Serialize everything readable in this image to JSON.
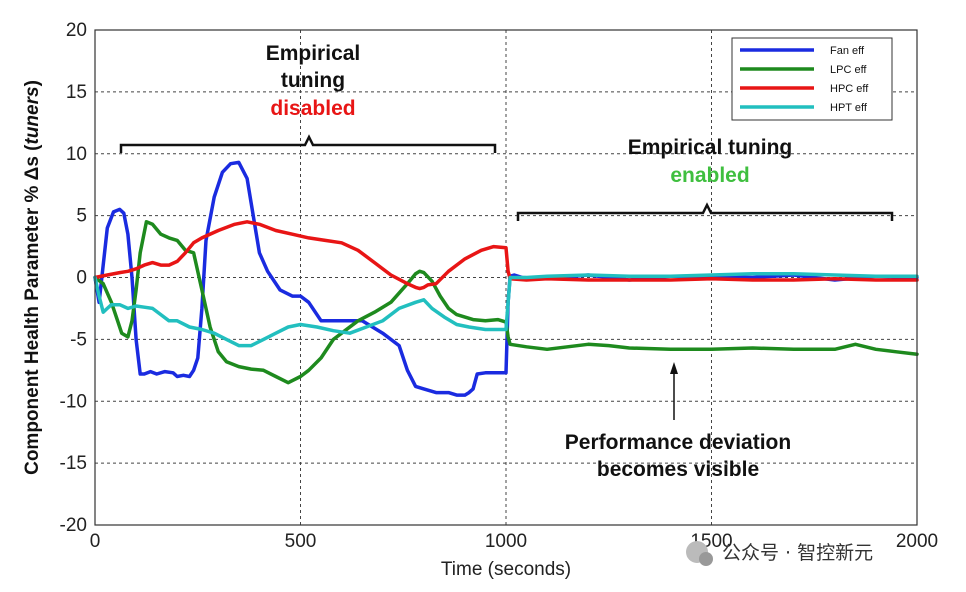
{
  "chart_data": {
    "type": "line",
    "xlabel": "Time (seconds)",
    "ylabel_prefix": "Component Health Parameter % Δs (",
    "ylabel_italic": "tuners",
    "ylabel_suffix": ")",
    "xlim": [
      0,
      2000
    ],
    "ylim": [
      -20,
      20
    ],
    "xticks": [
      0,
      500,
      1000,
      1500,
      2000
    ],
    "yticks": [
      -20,
      -15,
      -10,
      -5,
      0,
      5,
      10,
      15,
      20
    ],
    "grid": "dashed",
    "legend_position": "top-right",
    "series": [
      {
        "name": "Fan eff",
        "color": "#1a2be0",
        "x": [
          0,
          10,
          20,
          30,
          45,
          60,
          70,
          80,
          90,
          100,
          110,
          120,
          135,
          150,
          170,
          190,
          200,
          215,
          230,
          240,
          250,
          260,
          270,
          290,
          310,
          330,
          350,
          370,
          380,
          400,
          420,
          450,
          480,
          500,
          520,
          550,
          580,
          600,
          650,
          700,
          740,
          760,
          780,
          800,
          830,
          860,
          880,
          900,
          910,
          920,
          930,
          950,
          980,
          1000,
          1005,
          1010,
          1020,
          1040,
          1100,
          1200,
          1300,
          1400,
          1500,
          1600,
          1700,
          1800,
          1900,
          2000
        ],
        "y": [
          0,
          -2,
          1,
          4,
          5.3,
          5.5,
          5.2,
          3.5,
          0,
          -5,
          -7.8,
          -7.8,
          -7.6,
          -7.8,
          -7.6,
          -7.7,
          -8.0,
          -7.9,
          -8.0,
          -7.5,
          -6.5,
          -2.5,
          3,
          6.5,
          8.5,
          9.2,
          9.3,
          8.0,
          6,
          2,
          0.5,
          -1,
          -1.5,
          -1.5,
          -2,
          -3.5,
          -3.5,
          -3.5,
          -3.5,
          -4.5,
          -5.5,
          -7.5,
          -8.8,
          -9.0,
          -9.3,
          -9.3,
          -9.5,
          -9.5,
          -9.3,
          -9.0,
          -7.8,
          -7.7,
          -7.7,
          -7.7,
          -2,
          0.1,
          0.2,
          0,
          -0.1,
          0.2,
          -0.2,
          0.1,
          0.1,
          0,
          0.2,
          -0.2,
          0.1,
          0
        ]
      },
      {
        "name": "LPC eff",
        "color": "#1e8a1e",
        "x": [
          0,
          20,
          40,
          55,
          65,
          80,
          90,
          100,
          110,
          125,
          140,
          160,
          180,
          200,
          220,
          240,
          260,
          280,
          300,
          320,
          350,
          380,
          410,
          440,
          470,
          500,
          520,
          550,
          580,
          600,
          640,
          680,
          720,
          760,
          780,
          790,
          800,
          820,
          840,
          860,
          880,
          900,
          920,
          950,
          980,
          1000,
          1005,
          1010,
          1050,
          1100,
          1150,
          1200,
          1250,
          1300,
          1400,
          1500,
          1600,
          1700,
          1800,
          1850,
          1900,
          1950,
          2000
        ],
        "y": [
          0,
          -0.5,
          -2,
          -3.5,
          -4.5,
          -4.8,
          -3.5,
          -1,
          2,
          4.5,
          4.3,
          3.5,
          3.2,
          3,
          2.2,
          2.0,
          -1,
          -4,
          -6,
          -6.8,
          -7.2,
          -7.4,
          -7.5,
          -8.0,
          -8.5,
          -8.0,
          -7.5,
          -6.5,
          -5.0,
          -4.5,
          -3.5,
          -2.8,
          -2.0,
          -0.5,
          0.3,
          0.5,
          0.4,
          -0.3,
          -1.5,
          -2.5,
          -3.0,
          -3.2,
          -3.4,
          -3.5,
          -3.4,
          -3.6,
          -4.8,
          -5.4,
          -5.6,
          -5.8,
          -5.6,
          -5.4,
          -5.5,
          -5.7,
          -5.8,
          -5.8,
          -5.7,
          -5.8,
          -5.8,
          -5.4,
          -5.8,
          -6.0,
          -6.2
        ]
      },
      {
        "name": "HPC eff",
        "color": "#e81515",
        "x": [
          0,
          30,
          60,
          80,
          100,
          120,
          140,
          160,
          180,
          200,
          220,
          240,
          260,
          300,
          340,
          370,
          400,
          440,
          480,
          520,
          560,
          600,
          640,
          680,
          720,
          760,
          780,
          790,
          800,
          810,
          830,
          860,
          900,
          940,
          970,
          1000,
          1005,
          1010,
          1050,
          1100,
          1200,
          1300,
          1400,
          1500,
          1600,
          1700,
          1800,
          1900,
          2000
        ],
        "y": [
          0,
          0.2,
          0.4,
          0.5,
          0.7,
          1.0,
          1.2,
          1.0,
          1.0,
          1.3,
          2.0,
          2.8,
          3.2,
          3.8,
          4.3,
          4.5,
          4.3,
          3.8,
          3.5,
          3.2,
          3.0,
          2.8,
          2.2,
          1.2,
          0.2,
          -0.5,
          -0.8,
          -0.9,
          -0.8,
          -0.6,
          -0.5,
          0.5,
          1.5,
          2.2,
          2.5,
          2.4,
          0.5,
          -0.1,
          -0.2,
          -0.1,
          -0.2,
          -0.2,
          -0.2,
          -0.1,
          -0.2,
          -0.2,
          -0.1,
          -0.2,
          -0.2
        ]
      },
      {
        "name": "HPT eff",
        "color": "#22bfbf",
        "x": [
          0,
          10,
          20,
          30,
          40,
          60,
          80,
          100,
          120,
          140,
          160,
          180,
          200,
          230,
          260,
          290,
          320,
          350,
          380,
          410,
          440,
          470,
          500,
          540,
          580,
          620,
          660,
          700,
          740,
          780,
          800,
          820,
          850,
          880,
          910,
          950,
          980,
          1000,
          1005,
          1010,
          1050,
          1100,
          1200,
          1300,
          1400,
          1500,
          1600,
          1700,
          1800,
          1900,
          2000
        ],
        "y": [
          0,
          -1.5,
          -2.8,
          -2.5,
          -2.2,
          -2.2,
          -2.5,
          -2.3,
          -2.4,
          -2.5,
          -3.0,
          -3.5,
          -3.5,
          -4.0,
          -4.2,
          -4.5,
          -5.0,
          -5.5,
          -5.5,
          -5.0,
          -4.5,
          -4.0,
          -3.8,
          -4.0,
          -4.3,
          -4.5,
          -4.0,
          -3.5,
          -2.5,
          -2.0,
          -1.8,
          -2.5,
          -3.2,
          -3.8,
          -4.0,
          -4.2,
          -4.2,
          -4.2,
          -2,
          0,
          0,
          0.1,
          0.2,
          0.1,
          0.1,
          0.2,
          0.3,
          0.3,
          0.2,
          0.1,
          0.1
        ]
      }
    ],
    "annotations": [
      {
        "lines": [
          "Empirical",
          "tuning"
        ],
        "colored": "disabled",
        "colored_color": "#e81515"
      },
      {
        "lines": [
          "Empirical tuning"
        ],
        "colored": "enabled",
        "colored_color": "#3fbf3f"
      },
      {
        "lines": [
          "Performance deviation",
          "becomes visible"
        ]
      }
    ]
  },
  "watermark": "公众号 · 智控新元"
}
